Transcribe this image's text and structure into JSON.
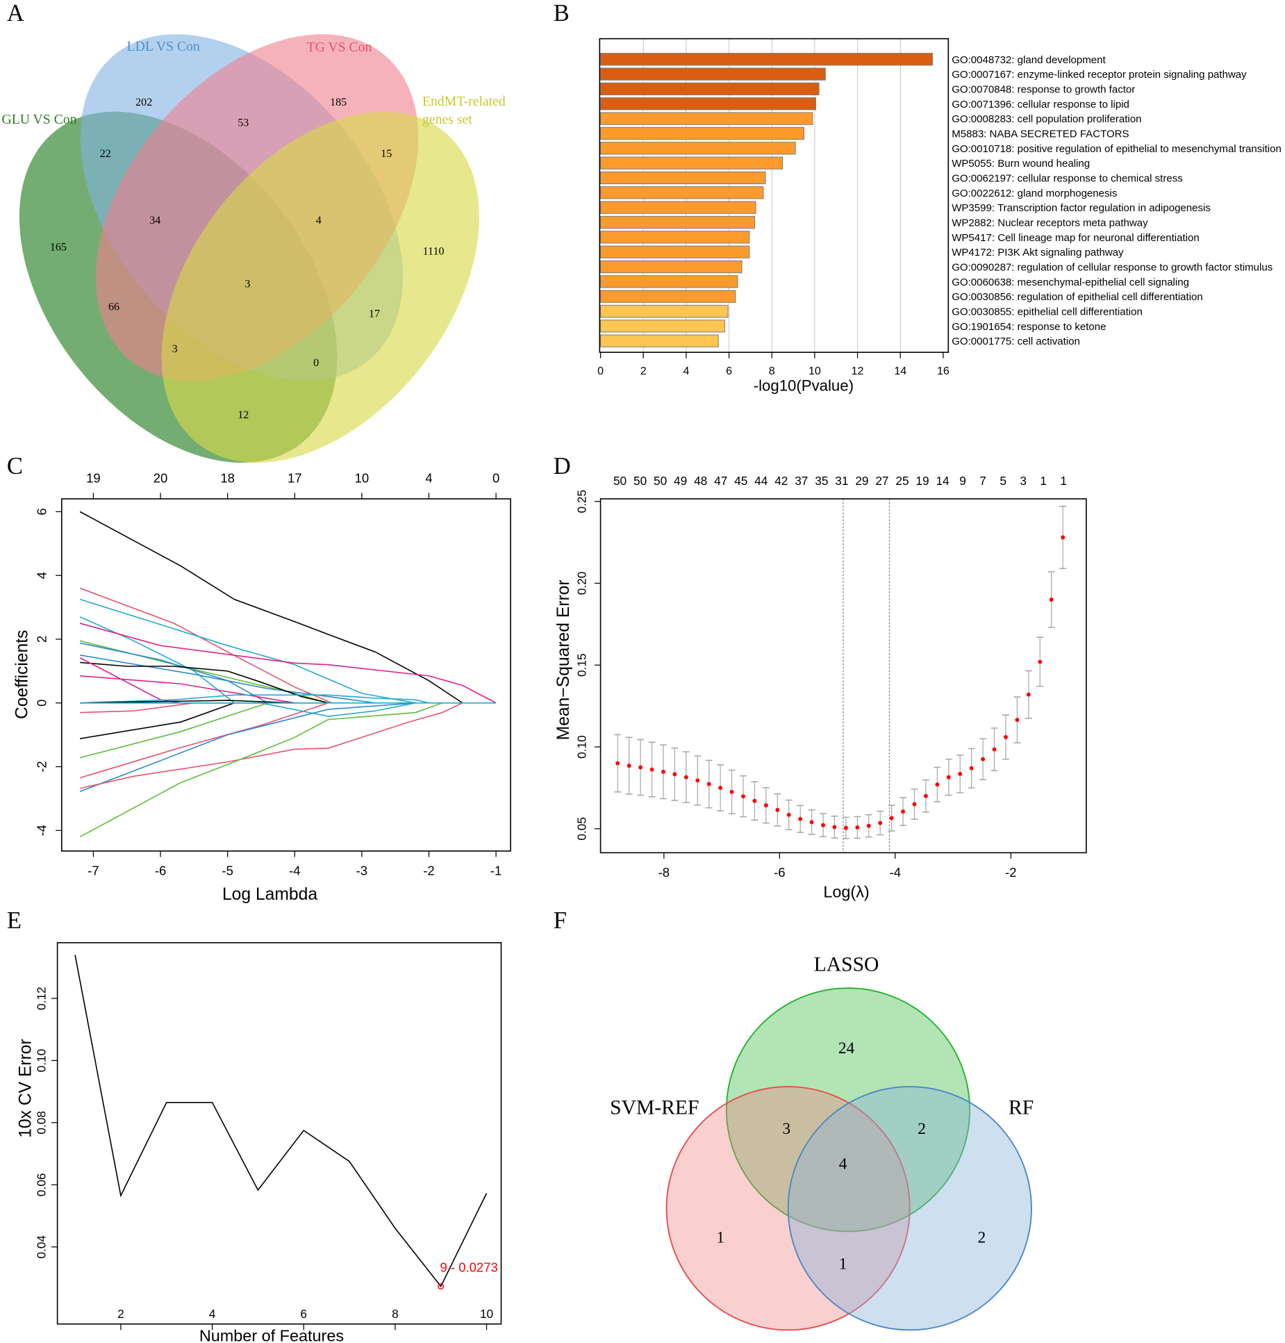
{
  "panel_letters": {
    "A": "A",
    "B": "B",
    "C": "C",
    "D": "D",
    "E": "E",
    "F": "F"
  },
  "venn_a": {
    "sets": {
      "glu": "GLU VS Con",
      "ldl": "LDL VS Con",
      "tg": "TG VS Con",
      "endmt1": "EndMT-related",
      "endmt2": "genes set"
    },
    "colors": {
      "glu": "#3e8e3a",
      "ldl": "#80b3e3",
      "tg": "#f07f8e",
      "endmt": "#d8d848"
    },
    "counts": {
      "ldl_only": "202",
      "ldl_tg": "53",
      "tg_only": "185",
      "glu_ldl": "22",
      "tg_endmt": "15",
      "glu_ldl_tg": "34",
      "ldl_tg_endmt": "4",
      "glu_only": "165",
      "endmt_only": "1110",
      "all": "3",
      "glu_tg": "66",
      "ldl_endmt": "17",
      "glu_tg_endmt": "3",
      "glu_ldl_endmt": "0",
      "glu_endmt": "12"
    }
  },
  "venn_f": {
    "sets": {
      "lasso": "LASSO",
      "svm": "SVM-REF",
      "rf": "RF"
    },
    "colors": {
      "lasso": "#22b22a",
      "svm": "#e84a4a",
      "rf": "#4a86c8"
    },
    "counts": {
      "lasso_only": "24",
      "lasso_svm": "3",
      "lasso_rf": "2",
      "all": "4",
      "svm_only": "1",
      "svm_rf": "1",
      "rf_only": "2"
    }
  },
  "chart_data": [
    {
      "id": "B",
      "type": "bar",
      "orientation": "horizontal",
      "xlabel": "-log10(Pvalue)",
      "xlim": [
        0,
        16
      ],
      "xticks": [
        0,
        2,
        4,
        6,
        8,
        10,
        12,
        14,
        16
      ],
      "categories": [
        "GO:0048732: gland development",
        "GO:0007167: enzyme-linked receptor protein signaling pathway",
        "GO:0070848: response to growth factor",
        "GO:0071396: cellular response to lipid",
        "GO:0008283: cell population proliferation",
        "M5883: NABA SECRETED FACTORS",
        "GO:0010718: positive regulation of epithelial to mesenchymal transition",
        "WP5055: Burn wound healing",
        "GO:0062197: cellular response to chemical stress",
        "GO:0022612: gland morphogenesis",
        "WP3599: Transcription factor regulation in adipogenesis",
        "WP2882: Nuclear receptors meta pathway",
        "WP5417: Cell lineage map for neuronal differentiation",
        "WP4172: PI3K Akt signaling pathway",
        "GO:0090287: regulation of cellular response to growth factor stimulus",
        "GO:0060638: mesenchymal-epithelial cell signaling",
        "GO:0030856: regulation of epithelial cell differentiation",
        "GO:0030855: epithelial cell differentiation",
        "GO:1901654: response to ketone",
        "GO:0001775: cell activation"
      ],
      "values": [
        15.5,
        10.5,
        10.2,
        10.05,
        9.9,
        9.5,
        9.1,
        8.5,
        7.7,
        7.6,
        7.25,
        7.2,
        6.95,
        6.95,
        6.6,
        6.4,
        6.3,
        5.95,
        5.8,
        5.5
      ],
      "color_groups": [
        0,
        0,
        0,
        0,
        1,
        1,
        1,
        1,
        1,
        1,
        1,
        1,
        1,
        1,
        1,
        1,
        1,
        2,
        2,
        2
      ],
      "colors": [
        "#da5e10",
        "#fd9a2e",
        "#fec650"
      ]
    },
    {
      "id": "C",
      "type": "line",
      "xlabel": "Log Lambda",
      "ylabel": "Coefficients",
      "xlim": [
        -7.45,
        -0.75
      ],
      "ylim": [
        -4.5,
        6.4
      ],
      "xticks": [
        -7,
        -6,
        -5,
        -4,
        -3,
        -2,
        -1
      ],
      "yticks": [
        -4,
        -2,
        0,
        2,
        4,
        6
      ],
      "top_axis": {
        "at": [
          -7,
          -6,
          -5,
          -4,
          -3,
          -2,
          -1
        ],
        "labels": [
          "19",
          "20",
          "18",
          "17",
          "10",
          "4",
          "0"
        ]
      },
      "series": [
        {
          "color": "#000000",
          "points": [
            [
              -7.2,
              6
            ],
            [
              -5.7,
              4.3
            ],
            [
              -4.9,
              3.25
            ],
            [
              -4,
              2.55
            ],
            [
              -3.5,
              2.15
            ],
            [
              -2.8,
              1.6
            ],
            [
              -2,
              0.7
            ],
            [
              -1.5,
              0
            ]
          ]
        },
        {
          "color": "#e8506e",
          "points": [
            [
              -7.2,
              3.6
            ],
            [
              -5.8,
              2.5
            ],
            [
              -5,
              1.6
            ],
            [
              -4,
              0.5
            ],
            [
              -3.45,
              0
            ]
          ]
        },
        {
          "color": "#22aacc",
          "points": [
            [
              -7.2,
              3.25
            ],
            [
              -5,
              1.8
            ],
            [
              -4,
              1.2
            ],
            [
              -3,
              0.3
            ],
            [
              -2.2,
              0
            ]
          ]
        },
        {
          "color": "#22aacc",
          "points": [
            [
              -7.2,
              2.7
            ],
            [
              -6.4,
              1.95
            ],
            [
              -5.5,
              1
            ],
            [
              -4.9,
              0
            ]
          ]
        },
        {
          "color": "#e0208a",
          "points": [
            [
              -7.2,
              2.5
            ],
            [
              -6,
              1.8
            ],
            [
              -4,
              1.25
            ],
            [
              -3.5,
              1.2
            ],
            [
              -2,
              0.85
            ],
            [
              -1.5,
              0.55
            ],
            [
              -1,
              0
            ]
          ]
        },
        {
          "color": "#5cbf3a",
          "points": [
            [
              -7.2,
              1.95
            ],
            [
              -5.5,
              1.05
            ],
            [
              -4,
              0.3
            ],
            [
              -3.5,
              0
            ]
          ]
        },
        {
          "color": "#2a8ad0",
          "points": [
            [
              -7.2,
              1.88
            ],
            [
              -6,
              1.35
            ],
            [
              -5,
              0.7
            ],
            [
              -4.4,
              0
            ]
          ]
        },
        {
          "color": "#2a8ad0",
          "points": [
            [
              -7.2,
              1.5
            ],
            [
              -5.5,
              0.9
            ],
            [
              -4.4,
              0.45
            ],
            [
              -3.5,
              0.2
            ],
            [
              -2.8,
              0
            ]
          ]
        },
        {
          "color": "#000000",
          "points": [
            [
              -7.2,
              1.27
            ],
            [
              -6.5,
              1.15
            ],
            [
              -5.8,
              1.15
            ],
            [
              -5,
              1.0
            ],
            [
              -4.5,
              0.65
            ],
            [
              -3.9,
              0.2
            ],
            [
              -3.5,
              0
            ]
          ]
        },
        {
          "color": "#e0208a",
          "points": [
            [
              -7.2,
              1.42
            ],
            [
              -6,
              0.1
            ],
            [
              -5.7,
              0
            ]
          ]
        },
        {
          "color": "#e0208a",
          "points": [
            [
              -7.2,
              0.85
            ],
            [
              -5.7,
              0.6
            ],
            [
              -4,
              0
            ]
          ]
        },
        {
          "color": "#22aacc",
          "points": [
            [
              -7.2,
              0
            ],
            [
              -5.8,
              0.1
            ],
            [
              -4.9,
              0.25
            ],
            [
              -3.5,
              0.25
            ],
            [
              -2.8,
              0.15
            ],
            [
              -2.2,
              0.1
            ],
            [
              -2,
              0
            ]
          ]
        },
        {
          "color": "#000000",
          "points": [
            [
              -7.2,
              0
            ],
            [
              -5,
              0.08
            ],
            [
              -4,
              0
            ]
          ]
        },
        {
          "color": "#e8506e",
          "points": [
            [
              -7.2,
              -0.3
            ],
            [
              -6.4,
              -0.25
            ],
            [
              -5.5,
              0
            ],
            [
              -4,
              0
            ]
          ]
        },
        {
          "color": "#000000",
          "points": [
            [
              -7.2,
              -1.12
            ],
            [
              -5.7,
              -0.6
            ],
            [
              -4.9,
              0
            ]
          ]
        },
        {
          "color": "#5cbf3a",
          "points": [
            [
              -7.2,
              -1.72
            ],
            [
              -5.7,
              -0.9
            ],
            [
              -4.4,
              0
            ],
            [
              -3.5,
              0
            ]
          ]
        },
        {
          "color": "#e8506e",
          "points": [
            [
              -7.2,
              -2.35
            ],
            [
              -5.7,
              -1.4
            ],
            [
              -4.5,
              -0.7
            ],
            [
              -3.5,
              0
            ]
          ]
        },
        {
          "color": "#2a8ad0",
          "points": [
            [
              -7.2,
              -2.78
            ],
            [
              -5,
              -1.0
            ],
            [
              -3.5,
              -0.2
            ],
            [
              -2.2,
              0
            ]
          ]
        },
        {
          "color": "#e8506e",
          "points": [
            [
              -7.2,
              -2.68
            ],
            [
              -6.4,
              -2.3
            ],
            [
              -5,
              -1.85
            ],
            [
              -4,
              -1.45
            ],
            [
              -3.5,
              -1.42
            ],
            [
              -2.3,
              -0.6
            ],
            [
              -1.8,
              -0.3
            ],
            [
              -1.5,
              0
            ]
          ]
        },
        {
          "color": "#5cbf3a",
          "points": [
            [
              -7.2,
              -4.2
            ],
            [
              -5.7,
              -2.5
            ],
            [
              -4.9,
              -1.85
            ],
            [
              -4,
              -1.08
            ],
            [
              -3.5,
              -0.52
            ],
            [
              -2.2,
              -0.3
            ],
            [
              -1.8,
              0
            ]
          ]
        },
        {
          "color": "#22aacc",
          "points": [
            [
              -7.2,
              0
            ],
            [
              -4.5,
              0
            ],
            [
              -3.5,
              -0.42
            ],
            [
              -2.8,
              -0.25
            ],
            [
              -2.2,
              0
            ]
          ]
        },
        {
          "color": "#22aacc",
          "points": [
            [
              -7.2,
              0
            ],
            [
              -1,
              0
            ]
          ]
        }
      ]
    },
    {
      "id": "D",
      "type": "scatter",
      "xlabel": "Log(λ)",
      "ylabel": "Mean−Squared Error",
      "xlim": [
        -9.1,
        -0.7
      ],
      "ylim": [
        0.038,
        0.257
      ],
      "xticks": [
        -8,
        -6,
        -4,
        -2
      ],
      "yticks": [
        0.05,
        0.1,
        0.15,
        0.2,
        0.25
      ],
      "vlines": [
        -4.9,
        -4.1
      ],
      "top_axis": {
        "start": -8.76,
        "step": 0.3487,
        "labels": [
          "50",
          "50",
          "50",
          "49",
          "48",
          "47",
          "45",
          "44",
          "42",
          "37",
          "35",
          "31",
          "29",
          "27",
          "25",
          "19",
          "14",
          "9",
          "7",
          "5",
          "3",
          "1",
          "1"
        ]
      },
      "x_start": -8.8,
      "x_step": 0.1974,
      "mse": [
        0.09,
        0.0885,
        0.0875,
        0.0862,
        0.0848,
        0.0833,
        0.0815,
        0.0795,
        0.0773,
        0.075,
        0.0725,
        0.0698,
        0.067,
        0.0643,
        0.0615,
        0.0585,
        0.056,
        0.054,
        0.0522,
        0.051,
        0.0505,
        0.0508,
        0.0518,
        0.0535,
        0.0565,
        0.0605,
        0.065,
        0.07,
        0.077,
        0.0815,
        0.0835,
        0.087,
        0.0925,
        0.0985,
        0.106,
        0.1165,
        0.132,
        0.152,
        0.19,
        0.228
      ],
      "se": [
        0.0175,
        0.0173,
        0.017,
        0.0167,
        0.0164,
        0.016,
        0.0155,
        0.015,
        0.0145,
        0.014,
        0.0133,
        0.0125,
        0.0117,
        0.0108,
        0.0098,
        0.009,
        0.0082,
        0.0075,
        0.007,
        0.0067,
        0.0065,
        0.0066,
        0.0068,
        0.0072,
        0.0078,
        0.0085,
        0.0092,
        0.0098,
        0.0105,
        0.011,
        0.0115,
        0.012,
        0.0125,
        0.013,
        0.0135,
        0.014,
        0.0145,
        0.015,
        0.017,
        0.019
      ],
      "point_color": "#ff0000",
      "bar_color": "#a8a8a8"
    },
    {
      "id": "E",
      "type": "line",
      "xlabel": "Number of Features",
      "ylabel": "10x CV Error",
      "xlim": [
        0.35,
        10.45
      ],
      "ylim": [
        0.022,
        0.138
      ],
      "xticks": [
        2,
        4,
        6,
        8,
        10
      ],
      "yticks": [
        0.04,
        0.06,
        0.08,
        0.1,
        0.12
      ],
      "x": [
        1,
        2,
        3,
        4,
        5,
        6,
        7,
        8,
        9,
        10
      ],
      "y": [
        0.134,
        0.0565,
        0.0865,
        0.0865,
        0.0583,
        0.0775,
        0.0675,
        0.046,
        0.0273,
        0.0573
      ],
      "annotation": {
        "x": 9,
        "y": 0.0273,
        "text": "9 - 0.0273",
        "color": "#ff0000"
      }
    }
  ]
}
